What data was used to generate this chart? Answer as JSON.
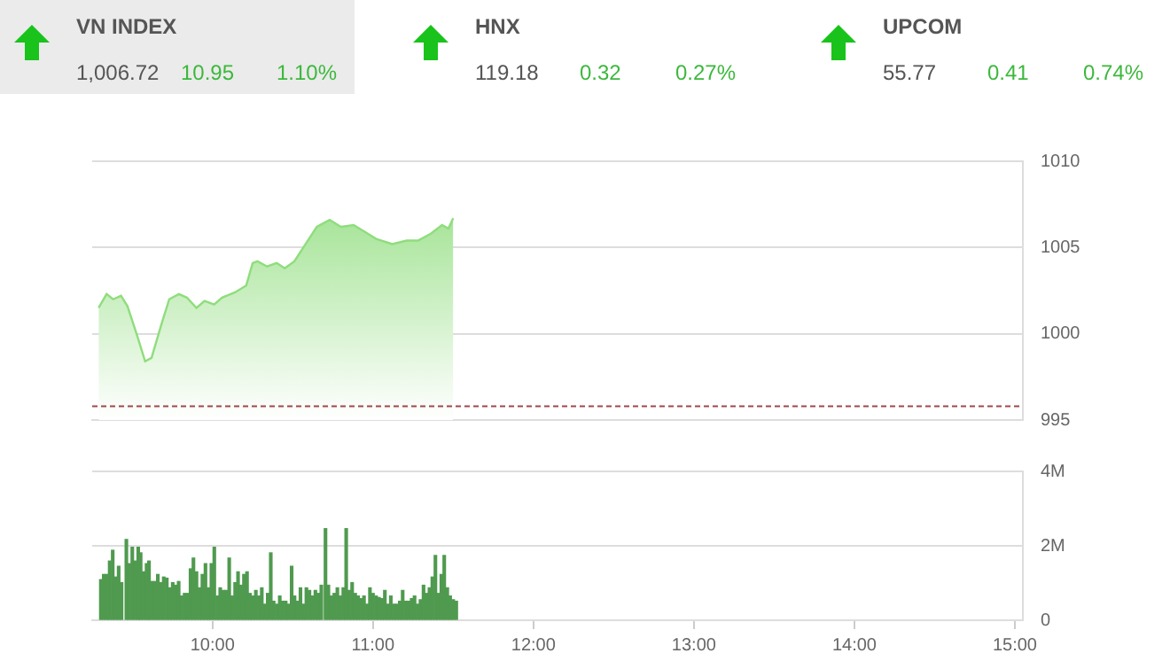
{
  "chart_data": [
    {
      "type": "other",
      "annotations": [
        "VN INDEX",
        "1,006.72",
        "10.95",
        "1.10%",
        "HNX",
        "119.18",
        "0.32",
        "0.27%",
        "UPCOM",
        "55.77",
        "0.41",
        "0.74%"
      ]
    },
    {
      "type": "area",
      "color": "#8fdd7d",
      "xlim": [
        9.25,
        15.05
      ],
      "ylim": [
        995,
        1010
      ],
      "yticks": [
        995,
        1000,
        1005,
        1010
      ],
      "grid": "y",
      "tick_labels": "y",
      "legend": false,
      "ref_lines": [
        {
          "axis": "y",
          "value": 995.8,
          "color": "#a04848",
          "line_style": "dashed"
        }
      ],
      "x": [
        9.29,
        9.34,
        9.38,
        9.43,
        9.47,
        9.53,
        9.58,
        9.62,
        9.68,
        9.73,
        9.79,
        9.84,
        9.9,
        9.95,
        10.01,
        10.06,
        10.14,
        10.21,
        10.25,
        10.28,
        10.34,
        10.4,
        10.45,
        10.51,
        10.58,
        10.65,
        10.73,
        10.8,
        10.88,
        10.95,
        11.02,
        11.12,
        11.21,
        11.28,
        11.36,
        11.43,
        11.47,
        11.5
      ],
      "values": [
        1001.5,
        1002.3,
        1002,
        1002.2,
        1001.6,
        999.9,
        998.4,
        998.6,
        1000.5,
        1002,
        1002.3,
        1002.1,
        1001.5,
        1001.9,
        1001.7,
        1002.1,
        1002.4,
        1002.8,
        1004.1,
        1004.2,
        1003.9,
        1004.1,
        1003.8,
        1004.2,
        1005.2,
        1006.2,
        1006.6,
        1006.2,
        1006.3,
        1005.9,
        1005.5,
        1005.2,
        1005.4,
        1005.4,
        1005.8,
        1006.3,
        1006.1,
        1006.7
      ]
    },
    {
      "type": "bar",
      "color": "#4f9a4f",
      "xlim": [
        9.25,
        15.05
      ],
      "xticks": [
        {
          "value": 10,
          "label": "10:00"
        },
        {
          "value": 11,
          "label": "11:00"
        },
        {
          "value": 12,
          "label": "12:00"
        },
        {
          "value": 13,
          "label": "13:00"
        },
        {
          "value": 14,
          "label": "14:00"
        },
        {
          "value": 15,
          "label": "15:00"
        }
      ],
      "ylim": [
        0,
        4
      ],
      "yticks": [
        0,
        {
          "value": 2,
          "label": "2M"
        },
        {
          "value": 4,
          "label": "4M"
        }
      ],
      "grid": "y",
      "legend": false,
      "x": [
        9.304,
        9.322,
        9.341,
        9.359,
        9.378,
        9.396,
        9.415,
        9.433,
        9.463,
        9.481,
        9.5,
        9.519,
        9.537,
        9.552,
        9.57,
        9.589,
        9.604,
        9.622,
        9.641,
        9.659,
        9.678,
        9.696,
        9.715,
        9.733,
        9.752,
        9.77,
        9.789,
        9.807,
        9.826,
        9.844,
        9.863,
        9.881,
        9.9,
        9.919,
        9.937,
        9.956,
        9.974,
        9.993,
        10.011,
        10.03,
        10.048,
        10.067,
        10.085,
        10.104,
        10.122,
        10.141,
        10.159,
        10.178,
        10.196,
        10.215,
        10.233,
        10.252,
        10.27,
        10.289,
        10.307,
        10.326,
        10.344,
        10.363,
        10.381,
        10.4,
        10.419,
        10.437,
        10.456,
        10.474,
        10.493,
        10.511,
        10.53,
        10.548,
        10.567,
        10.585,
        10.604,
        10.622,
        10.641,
        10.659,
        10.678,
        10.704,
        10.722,
        10.741,
        10.759,
        10.778,
        10.796,
        10.815,
        10.833,
        10.852,
        10.87,
        10.889,
        10.907,
        10.926,
        10.944,
        10.963,
        10.981,
        11,
        11.019,
        11.037,
        11.056,
        11.074,
        11.093,
        11.111,
        11.13,
        11.148,
        11.167,
        11.185,
        11.204,
        11.222,
        11.241,
        11.259,
        11.278,
        11.296,
        11.315,
        11.333,
        11.352,
        11.37,
        11.389,
        11.407,
        11.426,
        11.444,
        11.463,
        11.481,
        11.5,
        11.519
      ],
      "values": [
        1.09,
        1.23,
        1.23,
        1.59,
        1.88,
        1.16,
        1.45,
        1.01,
        2.17,
        1.52,
        1.96,
        1.59,
        1.96,
        1.81,
        1.3,
        1.52,
        1.59,
        1.04,
        1.04,
        1.23,
        1.01,
        1.16,
        1.13,
        0.87,
        1.01,
        0.94,
        1.04,
        0.65,
        0.72,
        0.72,
        1.38,
        1.67,
        1.3,
        0.87,
        1.23,
        1.52,
        0.87,
        1.52,
        1.96,
        0.65,
        0.87,
        0.8,
        0.8,
        1.67,
        0.65,
        1.01,
        1.3,
        0.94,
        1.23,
        1.3,
        0.72,
        0.65,
        0.8,
        0.65,
        0.87,
        0.43,
        0.72,
        1.81,
        0.51,
        0.43,
        0.65,
        0.51,
        0.51,
        0.43,
        1.45,
        0.65,
        0.51,
        0.87,
        0.43,
        0.87,
        0.8,
        0.65,
        0.8,
        0.72,
        0.94,
        2.46,
        0.94,
        0.65,
        0.72,
        0.87,
        0.65,
        0.87,
        2.46,
        0.8,
        1.01,
        0.72,
        0.65,
        0.58,
        0.65,
        0.43,
        0.87,
        0.72,
        0.65,
        0.61,
        0.58,
        0.8,
        0.43,
        0.65,
        0.43,
        0.43,
        0.51,
        0.8,
        0.51,
        0.51,
        0.58,
        0.65,
        0.43,
        0.55,
        0.94,
        0.72,
        0.87,
        1.16,
        1.74,
        0.72,
        1.23,
        1.74,
        0.87,
        0.65,
        0.55,
        0.51
      ]
    }
  ]
}
